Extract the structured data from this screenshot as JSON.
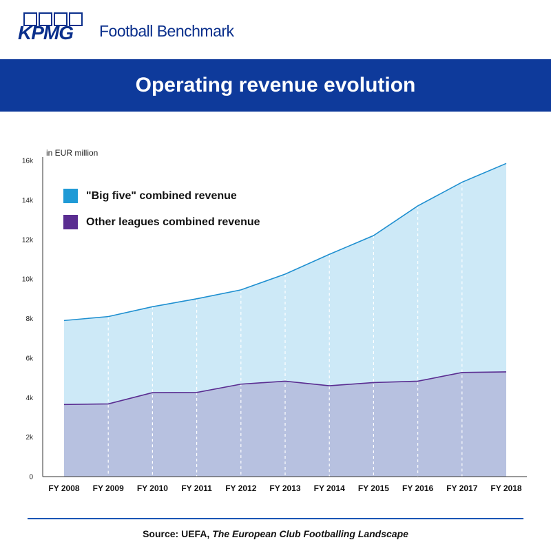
{
  "brand": {
    "logo_text": "KPMG",
    "product": "Football Benchmark"
  },
  "banner": {
    "title": "Operating revenue evolution"
  },
  "colors": {
    "brand_blue": "#0e3a9b",
    "big_five_line": "#1e8fd0",
    "big_five_fill": "#cde9f7",
    "other_line": "#5a2d91",
    "other_fill": "#b7c1e0"
  },
  "chart_data": {
    "type": "area",
    "title": "",
    "unit_label": "in EUR million",
    "categories": [
      "FY 2008",
      "FY 2009",
      "FY 2010",
      "FY 2011",
      "FY 2012",
      "FY 2013",
      "FY 2014",
      "FY 2015",
      "FY 2016",
      "FY 2017",
      "FY 2018"
    ],
    "series": [
      {
        "name": "\"Big five\" combined revenue",
        "values": [
          7900,
          8100,
          8600,
          9000,
          9450,
          10250,
          11250,
          12200,
          13700,
          14900,
          15850
        ]
      },
      {
        "name": "Other leagues combined revenue",
        "values": [
          3650,
          3680,
          4250,
          4260,
          4680,
          4830,
          4600,
          4760,
          4830,
          5270,
          5300
        ]
      }
    ],
    "ylim": [
      0,
      16000
    ],
    "yticks": [
      0,
      2000,
      4000,
      6000,
      8000,
      10000,
      12000,
      14000,
      16000
    ],
    "ytick_labels": [
      "0",
      "2k",
      "4k",
      "6k",
      "8k",
      "10k",
      "12k",
      "14k",
      "16k"
    ],
    "grid": "vertical dashed white lines at categories",
    "legend_position": "top-left"
  },
  "source": {
    "prefix": "Source: UEFA, ",
    "title": "The European Club Footballing Landscape"
  }
}
